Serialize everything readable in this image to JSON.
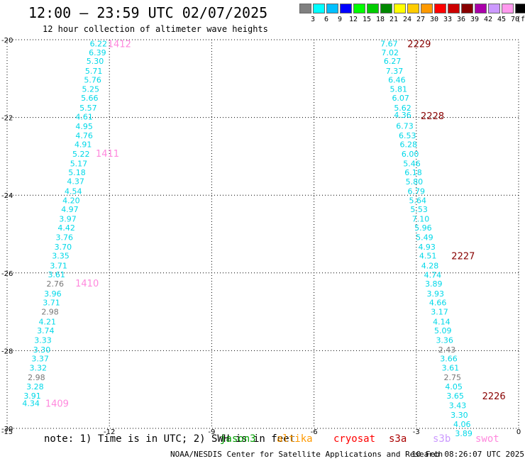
{
  "title": "12:00 — 23:59 UTC 02/07/2025",
  "subtitle": "12 hour collection of altimeter wave heights",
  "colorbar": {
    "labels": [
      "3",
      "6",
      "9",
      "12",
      "15",
      "18",
      "21",
      "24",
      "27",
      "30",
      "33",
      "36",
      "39",
      "42",
      "45",
      "70"
    ],
    "unit": "(ft)",
    "colors": [
      "#808080",
      "#00ffff",
      "#00bfff",
      "#0000ff",
      "#00ff00",
      "#00cc00",
      "#008800",
      "#ffff00",
      "#ffcc00",
      "#ff9900",
      "#ff0000",
      "#cc0000",
      "#880000",
      "#aa00aa",
      "#cc99ff",
      "#ff99ee",
      "#000000"
    ]
  },
  "chart_data": {
    "type": "scatter",
    "xlim": [
      -15,
      0
    ],
    "ylim": [
      -30,
      -20
    ],
    "x_ticks": [
      -15,
      -12,
      -9,
      -6,
      -3,
      0
    ],
    "x_tick_labels": [
      "-15",
      "-12",
      "-9",
      "-6",
      "-3",
      "0"
    ],
    "y_ticks": [
      -20,
      -22,
      -24,
      -26,
      -28,
      -30
    ],
    "y_tick_labels": [
      "-20",
      "-22",
      "-24",
      "-26",
      "-28",
      "-30"
    ],
    "grid": "dotted",
    "tracks": [
      {
        "points": [
          {
            "x": -12.32,
            "y": -20.1,
            "v": "6.22"
          },
          {
            "x": -12.35,
            "y": -20.33,
            "v": "6.39"
          },
          {
            "x": -12.42,
            "y": -20.55,
            "v": "5.30"
          },
          {
            "x": -12.46,
            "y": -20.8,
            "v": "5.71"
          },
          {
            "x": -12.49,
            "y": -21.03,
            "v": "5.76"
          },
          {
            "x": -12.55,
            "y": -21.27,
            "v": "5.25"
          },
          {
            "x": -12.58,
            "y": -21.5,
            "v": "5.66"
          },
          {
            "x": -12.62,
            "y": -21.75,
            "v": "5.57"
          },
          {
            "x": -12.74,
            "y": -21.98,
            "v": "4.61"
          },
          {
            "x": -12.74,
            "y": -22.23,
            "v": "4.95"
          },
          {
            "x": -12.74,
            "y": -22.46,
            "v": "4.76"
          },
          {
            "x": -12.77,
            "y": -22.69,
            "v": "4.91"
          },
          {
            "x": -12.83,
            "y": -22.94,
            "v": "5.22"
          },
          {
            "x": -12.9,
            "y": -23.18,
            "v": "5.17"
          },
          {
            "x": -12.95,
            "y": -23.41,
            "v": "5.18"
          },
          {
            "x": -12.99,
            "y": -23.64,
            "v": "4.37"
          },
          {
            "x": -13.06,
            "y": -23.9,
            "v": "4.54"
          },
          {
            "x": -13.12,
            "y": -24.13,
            "v": "4.20"
          },
          {
            "x": -13.16,
            "y": -24.36,
            "v": "4.97"
          },
          {
            "x": -13.22,
            "y": -24.61,
            "v": "3.97"
          },
          {
            "x": -13.26,
            "y": -24.84,
            "v": "4.42"
          },
          {
            "x": -13.32,
            "y": -25.08,
            "v": "3.76"
          },
          {
            "x": -13.36,
            "y": -25.33,
            "v": "3.70"
          },
          {
            "x": -13.43,
            "y": -25.56,
            "v": "3.35"
          },
          {
            "x": -13.49,
            "y": -25.81,
            "v": "3.71"
          },
          {
            "x": -13.55,
            "y": -26.04,
            "v": "3.61"
          },
          {
            "x": -13.59,
            "y": -26.28,
            "v": "2.76"
          },
          {
            "x": -13.66,
            "y": -26.53,
            "v": "3.96"
          },
          {
            "x": -13.7,
            "y": -26.76,
            "v": "3.71"
          },
          {
            "x": -13.74,
            "y": -27.0,
            "v": "2.98"
          },
          {
            "x": -13.82,
            "y": -27.25,
            "v": "4.21"
          },
          {
            "x": -13.87,
            "y": -27.48,
            "v": "3.74"
          },
          {
            "x": -13.95,
            "y": -27.73,
            "v": "3.33"
          },
          {
            "x": -13.98,
            "y": -27.97,
            "v": "3.30"
          },
          {
            "x": -14.03,
            "y": -28.2,
            "v": "3.37"
          },
          {
            "x": -14.09,
            "y": -28.44,
            "v": "3.32"
          },
          {
            "x": -14.14,
            "y": -28.69,
            "v": "2.98"
          },
          {
            "x": -14.18,
            "y": -28.92,
            "v": "3.28"
          },
          {
            "x": -14.26,
            "y": -29.16,
            "v": "3.91"
          },
          {
            "x": -14.3,
            "y": -29.35,
            "v": "4.34"
          }
        ],
        "time_labels": [
          {
            "x": -12.05,
            "y": -20.1,
            "t": "1412"
          },
          {
            "x": -12.4,
            "y": -22.92,
            "t": "1411"
          },
          {
            "x": -13.0,
            "y": -26.26,
            "t": "1410"
          },
          {
            "x": -13.88,
            "y": -29.35,
            "t": "1409"
          }
        ],
        "time_color": "#ff88dd"
      },
      {
        "points": [
          {
            "x": -3.8,
            "y": -20.1,
            "v": "7.67"
          },
          {
            "x": -3.77,
            "y": -20.33,
            "v": "7.02"
          },
          {
            "x": -3.7,
            "y": -20.55,
            "v": "6.27"
          },
          {
            "x": -3.64,
            "y": -20.8,
            "v": "7.37"
          },
          {
            "x": -3.57,
            "y": -21.03,
            "v": "6.46"
          },
          {
            "x": -3.52,
            "y": -21.27,
            "v": "5.81"
          },
          {
            "x": -3.46,
            "y": -21.5,
            "v": "6.07"
          },
          {
            "x": -3.4,
            "y": -21.75,
            "v": "5.62"
          },
          {
            "x": -3.4,
            "y": -21.93,
            "v": "4.36"
          },
          {
            "x": -3.34,
            "y": -22.22,
            "v": "6.73"
          },
          {
            "x": -3.26,
            "y": -22.46,
            "v": "6.53"
          },
          {
            "x": -3.23,
            "y": -22.69,
            "v": "6.28"
          },
          {
            "x": -3.18,
            "y": -22.94,
            "v": "6.00"
          },
          {
            "x": -3.13,
            "y": -23.18,
            "v": "5.46"
          },
          {
            "x": -3.09,
            "y": -23.41,
            "v": "6.18"
          },
          {
            "x": -3.06,
            "y": -23.65,
            "v": "5.80"
          },
          {
            "x": -3.0,
            "y": -23.9,
            "v": "6.79"
          },
          {
            "x": -2.96,
            "y": -24.13,
            "v": "5.64"
          },
          {
            "x": -2.92,
            "y": -24.36,
            "v": "5.53"
          },
          {
            "x": -2.87,
            "y": -24.61,
            "v": "7.10"
          },
          {
            "x": -2.8,
            "y": -24.84,
            "v": "5.96"
          },
          {
            "x": -2.76,
            "y": -25.08,
            "v": "5.49"
          },
          {
            "x": -2.69,
            "y": -25.33,
            "v": "4.93"
          },
          {
            "x": -2.66,
            "y": -25.56,
            "v": "4.51"
          },
          {
            "x": -2.6,
            "y": -25.81,
            "v": "4.28"
          },
          {
            "x": -2.52,
            "y": -26.05,
            "v": "4.74"
          },
          {
            "x": -2.49,
            "y": -26.28,
            "v": "3.89"
          },
          {
            "x": -2.44,
            "y": -26.53,
            "v": "3.93"
          },
          {
            "x": -2.37,
            "y": -26.76,
            "v": "4.66"
          },
          {
            "x": -2.32,
            "y": -27.0,
            "v": "3.17"
          },
          {
            "x": -2.26,
            "y": -27.25,
            "v": "4.14"
          },
          {
            "x": -2.22,
            "y": -27.48,
            "v": "5.09"
          },
          {
            "x": -2.17,
            "y": -27.73,
            "v": "3.36"
          },
          {
            "x": -2.1,
            "y": -27.97,
            "v": "2.43"
          },
          {
            "x": -2.05,
            "y": -28.2,
            "v": "3.66"
          },
          {
            "x": -2.0,
            "y": -28.44,
            "v": "3.61"
          },
          {
            "x": -1.94,
            "y": -28.69,
            "v": "2.75"
          },
          {
            "x": -1.9,
            "y": -28.92,
            "v": "4.05"
          },
          {
            "x": -1.86,
            "y": -29.16,
            "v": "3.65"
          },
          {
            "x": -1.79,
            "y": -29.41,
            "v": "3.43"
          },
          {
            "x": -1.74,
            "y": -29.65,
            "v": "3.30"
          },
          {
            "x": -1.66,
            "y": -29.89,
            "v": "4.06"
          },
          {
            "x": -1.61,
            "y": -30.13,
            "v": "3.89"
          }
        ],
        "time_labels": [
          {
            "x": -3.26,
            "y": -20.1,
            "t": "2229"
          },
          {
            "x": -2.87,
            "y": -21.95,
            "t": "2228"
          },
          {
            "x": -1.97,
            "y": -25.56,
            "t": "2227"
          },
          {
            "x": -1.07,
            "y": -29.16,
            "t": "2226"
          }
        ],
        "time_color": "#880000"
      }
    ]
  },
  "note": "note: 1) Time is in UTC; 2) SWH is in feet",
  "satellites": [
    {
      "name": "jason3",
      "color": "#00a000"
    },
    {
      "name": "altika",
      "color": "#ff9900"
    },
    {
      "name": "cryosat",
      "color": "#ff0000"
    },
    {
      "name": "s3a",
      "color": "#aa0000"
    },
    {
      "name": "s3b",
      "color": "#cc99ff"
    },
    {
      "name": "swot",
      "color": "#ff88dd"
    }
  ],
  "credit": "NOAA/NESDIS Center for Satellite Applications and Research",
  "timestamp": "10 Feb 08:26:07 UTC 2025"
}
